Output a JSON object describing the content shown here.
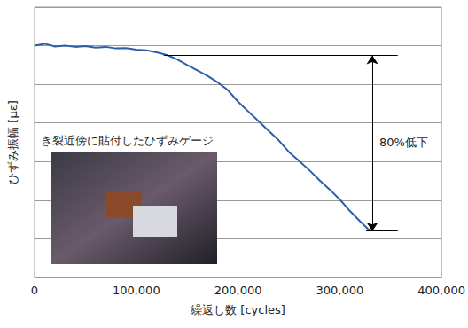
{
  "chart_data": {
    "type": "line",
    "x_label": "繰返し数 [cycles]",
    "y_label": "ひずみ振幅 [με]",
    "x": [
      0,
      10000,
      20000,
      30000,
      40000,
      50000,
      60000,
      70000,
      80000,
      90000,
      100000,
      110000,
      120000,
      130000,
      140000,
      150000,
      160000,
      170000,
      180000,
      190000,
      200000,
      210000,
      220000,
      230000,
      240000,
      250000,
      260000,
      270000,
      280000,
      290000,
      300000,
      310000,
      320000,
      330000
    ],
    "values": [
      6.0,
      6.05,
      5.98,
      6.0,
      5.97,
      5.99,
      5.95,
      5.97,
      5.93,
      5.94,
      5.9,
      5.88,
      5.83,
      5.76,
      5.65,
      5.5,
      5.36,
      5.22,
      5.05,
      4.85,
      4.55,
      4.3,
      4.05,
      3.8,
      3.55,
      3.25,
      3.02,
      2.78,
      2.52,
      2.28,
      2.02,
      1.72,
      1.45,
      1.2
    ],
    "color": "#2e5da8",
    "xlim": [
      0,
      400000
    ],
    "xticks": [
      0,
      100000,
      200000,
      300000,
      400000
    ],
    "ylim": [
      0,
      7
    ],
    "yticks": [
      0,
      1,
      2,
      3,
      4,
      5,
      6,
      7
    ],
    "grid": true,
    "tick_labels": "x",
    "annotations": [
      {
        "text": "き裂近傍に貼付したひずみゲージ"
      }
    ],
    "bracket": {
      "label": "80%低下",
      "x_arrow": 332000,
      "upper": {
        "y": 5.75,
        "x": [
          127000,
          357000
        ]
      },
      "lower": {
        "y": 1.2,
        "x": [
          326000,
          357000
        ]
      }
    }
  }
}
